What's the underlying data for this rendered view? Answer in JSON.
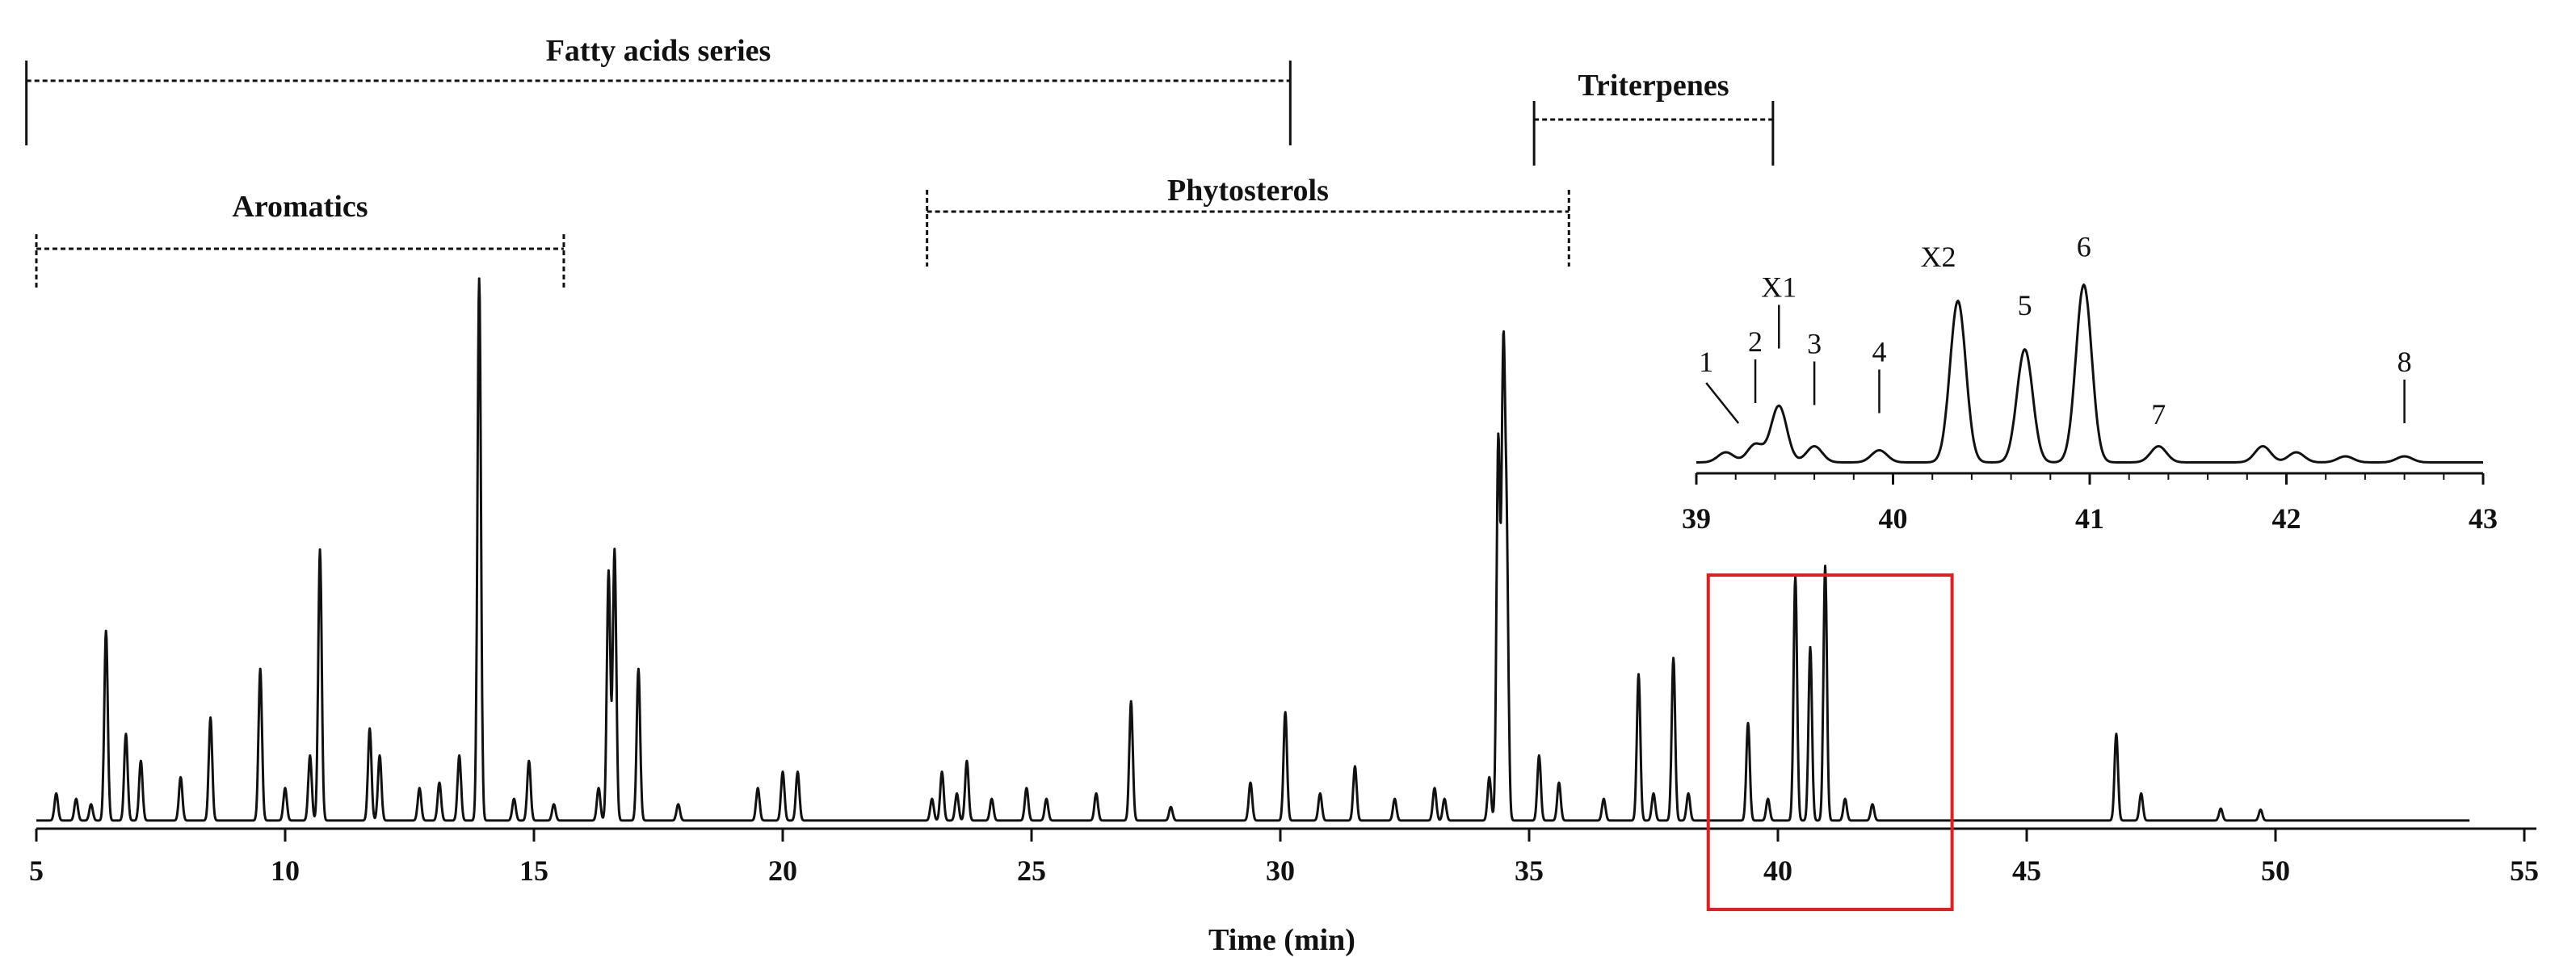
{
  "chart_data": [
    {
      "type": "line",
      "name": "main-chromatogram",
      "xlabel": "Time (min)",
      "ylabel": "",
      "xlim": [
        5,
        55
      ],
      "xticks": [
        5,
        10,
        15,
        20,
        25,
        30,
        35,
        40,
        45,
        50,
        55
      ],
      "ylim": [
        0,
        100
      ],
      "baseline": 1.5,
      "peaks": [
        {
          "t": 5.4,
          "h": 5
        },
        {
          "t": 5.8,
          "h": 4
        },
        {
          "t": 6.1,
          "h": 3
        },
        {
          "t": 6.4,
          "h": 35
        },
        {
          "t": 6.8,
          "h": 16
        },
        {
          "t": 7.1,
          "h": 11
        },
        {
          "t": 7.9,
          "h": 8
        },
        {
          "t": 8.5,
          "h": 19
        },
        {
          "t": 9.5,
          "h": 28
        },
        {
          "t": 10.0,
          "h": 6
        },
        {
          "t": 10.5,
          "h": 12
        },
        {
          "t": 10.7,
          "h": 50
        },
        {
          "t": 11.7,
          "h": 17
        },
        {
          "t": 11.9,
          "h": 12
        },
        {
          "t": 12.7,
          "h": 6
        },
        {
          "t": 13.1,
          "h": 7
        },
        {
          "t": 13.5,
          "h": 12
        },
        {
          "t": 13.9,
          "h": 100
        },
        {
          "t": 14.6,
          "h": 4
        },
        {
          "t": 14.9,
          "h": 11
        },
        {
          "t": 15.4,
          "h": 3
        },
        {
          "t": 16.3,
          "h": 6
        },
        {
          "t": 16.5,
          "h": 46
        },
        {
          "t": 16.62,
          "h": 50
        },
        {
          "t": 17.1,
          "h": 28
        },
        {
          "t": 17.9,
          "h": 3
        },
        {
          "t": 19.5,
          "h": 6
        },
        {
          "t": 20.0,
          "h": 9
        },
        {
          "t": 20.3,
          "h": 9
        },
        {
          "t": 23.0,
          "h": 4
        },
        {
          "t": 23.2,
          "h": 9
        },
        {
          "t": 23.5,
          "h": 5
        },
        {
          "t": 23.7,
          "h": 11
        },
        {
          "t": 24.2,
          "h": 4
        },
        {
          "t": 24.9,
          "h": 6
        },
        {
          "t": 25.3,
          "h": 4
        },
        {
          "t": 26.3,
          "h": 5
        },
        {
          "t": 27.0,
          "h": 22
        },
        {
          "t": 27.8,
          "h": 2.5
        },
        {
          "t": 29.4,
          "h": 7
        },
        {
          "t": 30.1,
          "h": 20
        },
        {
          "t": 30.8,
          "h": 5
        },
        {
          "t": 31.5,
          "h": 10
        },
        {
          "t": 32.3,
          "h": 4
        },
        {
          "t": 33.1,
          "h": 6
        },
        {
          "t": 33.3,
          "h": 4
        },
        {
          "t": 34.2,
          "h": 8
        },
        {
          "t": 34.38,
          "h": 70
        },
        {
          "t": 34.48,
          "h": 82
        },
        {
          "t": 34.55,
          "h": 48
        },
        {
          "t": 35.2,
          "h": 12
        },
        {
          "t": 35.6,
          "h": 7
        },
        {
          "t": 36.5,
          "h": 4
        },
        {
          "t": 37.2,
          "h": 27
        },
        {
          "t": 37.5,
          "h": 5
        },
        {
          "t": 37.9,
          "h": 30
        },
        {
          "t": 38.2,
          "h": 5
        },
        {
          "t": 39.4,
          "h": 18
        },
        {
          "t": 39.8,
          "h": 4
        },
        {
          "t": 40.35,
          "h": 45
        },
        {
          "t": 40.65,
          "h": 32
        },
        {
          "t": 40.95,
          "h": 47
        },
        {
          "t": 41.35,
          "h": 4
        },
        {
          "t": 41.9,
          "h": 3
        },
        {
          "t": 46.8,
          "h": 16
        },
        {
          "t": 47.3,
          "h": 5
        },
        {
          "t": 48.9,
          "h": 2.2
        },
        {
          "t": 49.7,
          "h": 2
        }
      ],
      "regions": [
        {
          "label": "Fatty acids series",
          "start": 4.8,
          "end": 30.2
        },
        {
          "label": "Aromatics",
          "start": 5.0,
          "end": 15.6
        },
        {
          "label": "Phytosterols",
          "start": 22.9,
          "end": 35.8
        },
        {
          "label": "Triterpenes",
          "start": 35.1,
          "end": 39.9
        }
      ],
      "zoom_box": {
        "start": 38.6,
        "end": 43.5
      }
    },
    {
      "type": "line",
      "name": "inset-chromatogram",
      "xlim": [
        39,
        43
      ],
      "xticks": [
        39,
        40,
        41,
        42,
        43
      ],
      "ylim": [
        0,
        100
      ],
      "baseline": 3,
      "peaks": [
        {
          "t": 39.15,
          "h": 5
        },
        {
          "t": 39.3,
          "h": 9
        },
        {
          "t": 39.42,
          "h": 28
        },
        {
          "t": 39.6,
          "h": 8
        },
        {
          "t": 39.93,
          "h": 6
        },
        {
          "t": 40.33,
          "h": 80
        },
        {
          "t": 40.67,
          "h": 56
        },
        {
          "t": 40.97,
          "h": 88
        },
        {
          "t": 41.35,
          "h": 8
        },
        {
          "t": 41.88,
          "h": 8
        },
        {
          "t": 42.05,
          "h": 5
        },
        {
          "t": 42.3,
          "h": 3
        },
        {
          "t": 42.6,
          "h": 3
        }
      ],
      "peak_labels": [
        {
          "label": "1",
          "t": 39.05,
          "h": 48
        },
        {
          "label": "2",
          "t": 39.3,
          "h": 58
        },
        {
          "label": "X1",
          "t": 39.42,
          "h": 85
        },
        {
          "label": "3",
          "t": 39.6,
          "h": 57
        },
        {
          "label": "4",
          "t": 39.93,
          "h": 53
        },
        {
          "label": "X2",
          "t": 40.23,
          "h": 100
        },
        {
          "label": "5",
          "t": 40.67,
          "h": 76
        },
        {
          "label": "6",
          "t": 40.97,
          "h": 105
        },
        {
          "label": "7",
          "t": 41.35,
          "h": 22
        },
        {
          "label": "8",
          "t": 42.6,
          "h": 48
        }
      ]
    }
  ]
}
